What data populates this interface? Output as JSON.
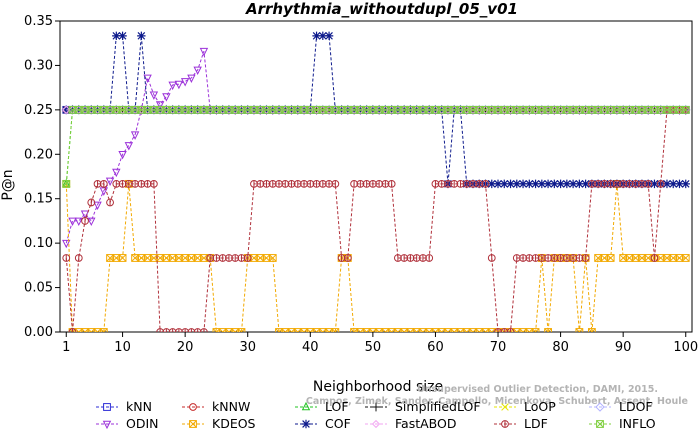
{
  "chart_data": {
    "type": "line",
    "title": "Arrhythmia_withoutdupl_05_v01",
    "xlabel": "Neighborhood size",
    "ylabel": "P@n",
    "xlim": [
      0,
      101
    ],
    "ylim": [
      0,
      0.35
    ],
    "xticks": [
      1,
      10,
      20,
      30,
      40,
      50,
      60,
      70,
      80,
      90,
      100
    ],
    "yticks": [
      "0.00",
      "0.05",
      "0.10",
      "0.15",
      "0.20",
      "0.25",
      "0.30",
      "0.35"
    ],
    "grid": false,
    "legend_position": "bottom",
    "watermark": [
      "Unsupervised Outlier Detection, DAMI, 2015.",
      "Campos, Zimek, Sander, Campello, Micenkova, Schubert, Assent, Houle"
    ],
    "series": [
      {
        "name": "kNN",
        "color": "#2b2bd6",
        "marker": "square",
        "segments": [
          {
            "x0": 1,
            "x1": 100,
            "value": 0.25
          }
        ]
      },
      {
        "name": "kNNW",
        "color": "#c62828",
        "marker": "circle",
        "segments": [
          {
            "x0": 1,
            "x1": 100,
            "value": 0.25
          }
        ]
      },
      {
        "name": "LOF",
        "color": "#22c322",
        "marker": "triangle",
        "segments": [
          {
            "x0": 1,
            "x1": 1,
            "value": 0.1667
          },
          {
            "x0": 2,
            "x1": 100,
            "value": 0.25
          }
        ]
      },
      {
        "name": "SimplifiedLOF",
        "color": "#111111",
        "marker": "plus",
        "segments": [
          {
            "x0": 1,
            "x1": 100,
            "value": 0.25
          }
        ]
      },
      {
        "name": "LoOP",
        "color": "#e6e600",
        "marker": "x",
        "segments": [
          {
            "x0": 1,
            "x1": 100,
            "value": 0.25
          }
        ]
      },
      {
        "name": "LDOF",
        "color": "#b3b3ff",
        "marker": "diamond",
        "segments": [
          {
            "x0": 1,
            "x1": 100,
            "value": 0.25
          }
        ]
      },
      {
        "name": "ODIN",
        "color": "#9b30d9",
        "marker": "triangle-down",
        "segments": [
          {
            "x0": 1,
            "x1": 1,
            "value": 0.1
          },
          {
            "x0": 2,
            "x1": 2,
            "value": 0.125
          },
          {
            "x0": 3,
            "x1": 3,
            "value": 0.125
          },
          {
            "x0": 4,
            "x1": 4,
            "value": 0.133
          },
          {
            "x0": 5,
            "x1": 5,
            "value": 0.125
          },
          {
            "x0": 6,
            "x1": 6,
            "value": 0.143
          },
          {
            "x0": 7,
            "x1": 7,
            "value": 0.159
          },
          {
            "x0": 8,
            "x1": 8,
            "value": 0.17
          },
          {
            "x0": 9,
            "x1": 9,
            "value": 0.18
          },
          {
            "x0": 10,
            "x1": 10,
            "value": 0.2
          },
          {
            "x0": 11,
            "x1": 11,
            "value": 0.21
          },
          {
            "x0": 12,
            "x1": 12,
            "value": 0.222
          },
          {
            "x0": 13,
            "x1": 13,
            "value": 0.25
          },
          {
            "x0": 14,
            "x1": 14,
            "value": 0.286
          },
          {
            "x0": 15,
            "x1": 15,
            "value": 0.267
          },
          {
            "x0": 16,
            "x1": 16,
            "value": 0.256
          },
          {
            "x0": 17,
            "x1": 17,
            "value": 0.265
          },
          {
            "x0": 18,
            "x1": 18,
            "value": 0.278
          },
          {
            "x0": 19,
            "x1": 19,
            "value": 0.279
          },
          {
            "x0": 20,
            "x1": 20,
            "value": 0.282
          },
          {
            "x0": 21,
            "x1": 21,
            "value": 0.286
          },
          {
            "x0": 22,
            "x1": 22,
            "value": 0.295
          },
          {
            "x0": 23,
            "x1": 23,
            "value": 0.316
          },
          {
            "x0": 24,
            "x1": 100,
            "value": 0.25
          }
        ]
      },
      {
        "name": "KDEOS",
        "color": "#f2a900",
        "marker": "square-x",
        "segments": [
          {
            "x0": 1,
            "x1": 1,
            "value": 0.1667
          },
          {
            "x0": 2,
            "x1": 7,
            "value": 0.0
          },
          {
            "x0": 8,
            "x1": 10,
            "value": 0.0833
          },
          {
            "x0": 11,
            "x1": 11,
            "value": 0.1667
          },
          {
            "x0": 12,
            "x1": 24,
            "value": 0.0833
          },
          {
            "x0": 25,
            "x1": 29,
            "value": 0.0
          },
          {
            "x0": 30,
            "x1": 34,
            "value": 0.0833
          },
          {
            "x0": 35,
            "x1": 44,
            "value": 0.0
          },
          {
            "x0": 45,
            "x1": 46,
            "value": 0.0833
          },
          {
            "x0": 47,
            "x1": 76,
            "value": 0.0
          },
          {
            "x0": 77,
            "x1": 77,
            "value": 0.0833
          },
          {
            "x0": 78,
            "x1": 78,
            "value": 0.0
          },
          {
            "x0": 79,
            "x1": 82,
            "value": 0.0833
          },
          {
            "x0": 83,
            "x1": 83,
            "value": 0.0
          },
          {
            "x0": 84,
            "x1": 84,
            "value": 0.0833
          },
          {
            "x0": 85,
            "x1": 85,
            "value": 0.0
          },
          {
            "x0": 86,
            "x1": 88,
            "value": 0.0833
          },
          {
            "x0": 89,
            "x1": 89,
            "value": 0.1667
          },
          {
            "x0": 90,
            "x1": 100,
            "value": 0.0833
          }
        ]
      },
      {
        "name": "COF",
        "color": "#0d1a8c",
        "marker": "asterisk",
        "segments": [
          {
            "x0": 1,
            "x1": 8,
            "value": 0.25
          },
          {
            "x0": 9,
            "x1": 10,
            "value": 0.3333
          },
          {
            "x0": 11,
            "x1": 12,
            "value": 0.25
          },
          {
            "x0": 13,
            "x1": 13,
            "value": 0.3333
          },
          {
            "x0": 14,
            "x1": 40,
            "value": 0.25
          },
          {
            "x0": 41,
            "x1": 43,
            "value": 0.3333
          },
          {
            "x0": 44,
            "x1": 61,
            "value": 0.25
          },
          {
            "x0": 62,
            "x1": 62,
            "value": 0.1667
          },
          {
            "x0": 63,
            "x1": 63,
            "value": 0.25
          },
          {
            "x0": 64,
            "x1": 64,
            "value": 0.25
          },
          {
            "x0": 65,
            "x1": 100,
            "value": 0.1667
          }
        ]
      },
      {
        "name": "FastABOD",
        "color": "#f2a6f2",
        "marker": "diamond-small",
        "segments": [
          {
            "x0": 1,
            "x1": 100,
            "value": 0.25
          }
        ]
      },
      {
        "name": "LDF",
        "color": "#b0303a",
        "marker": "circle-line",
        "segments": [
          {
            "x0": 1,
            "x1": 1,
            "value": 0.0833
          },
          {
            "x0": 2,
            "x1": 2,
            "value": 0.0
          },
          {
            "x0": 3,
            "x1": 3,
            "value": 0.0833
          },
          {
            "x0": 4,
            "x1": 4,
            "value": 0.125
          },
          {
            "x0": 5,
            "x1": 5,
            "value": 0.1458
          },
          {
            "x0": 6,
            "x1": 7,
            "value": 0.1667
          },
          {
            "x0": 8,
            "x1": 8,
            "value": 0.1458
          },
          {
            "x0": 9,
            "x1": 9,
            "value": 0.1667
          },
          {
            "x0": 10,
            "x1": 10,
            "value": 0.1667
          },
          {
            "x0": 11,
            "x1": 15,
            "value": 0.1667
          },
          {
            "x0": 16,
            "x1": 23,
            "value": 0.0
          },
          {
            "x0": 24,
            "x1": 30,
            "value": 0.0833
          },
          {
            "x0": 31,
            "x1": 44,
            "value": 0.1667
          },
          {
            "x0": 45,
            "x1": 45,
            "value": 0.0833
          },
          {
            "x0": 46,
            "x1": 46,
            "value": 0.0833
          },
          {
            "x0": 47,
            "x1": 52,
            "value": 0.1667
          },
          {
            "x0": 53,
            "x1": 53,
            "value": 0.1667
          },
          {
            "x0": 54,
            "x1": 58,
            "value": 0.0833
          },
          {
            "x0": 59,
            "x1": 59,
            "value": 0.0833
          },
          {
            "x0": 60,
            "x1": 62,
            "value": 0.1667
          },
          {
            "x0": 63,
            "x1": 63,
            "value": 0.1667
          },
          {
            "x0": 64,
            "x1": 68,
            "value": 0.1667
          },
          {
            "x0": 69,
            "x1": 69,
            "value": 0.0833
          },
          {
            "x0": 70,
            "x1": 70,
            "value": 0.0
          },
          {
            "x0": 71,
            "x1": 71,
            "value": 0.0
          },
          {
            "x0": 72,
            "x1": 72,
            "value": 0.0
          },
          {
            "x0": 73,
            "x1": 76,
            "value": 0.0833
          },
          {
            "x0": 77,
            "x1": 84,
            "value": 0.0833
          },
          {
            "x0": 85,
            "x1": 94,
            "value": 0.1667
          },
          {
            "x0": 95,
            "x1": 95,
            "value": 0.0833
          },
          {
            "x0": 96,
            "x1": 96,
            "value": 0.1667
          },
          {
            "x0": 97,
            "x1": 100,
            "value": 0.25
          }
        ]
      },
      {
        "name": "INFLO",
        "color": "#7fcf3f",
        "marker": "square-x",
        "segments": [
          {
            "x0": 1,
            "x1": 1,
            "value": 0.1667
          },
          {
            "x0": 2,
            "x1": 100,
            "value": 0.25
          }
        ]
      }
    ],
    "legend_order": [
      [
        "kNN",
        "kNNW",
        "LOF",
        "SimplifiedLOF",
        "LoOP",
        "LDOF"
      ],
      [
        "ODIN",
        "KDEOS",
        "COF",
        "FastABOD",
        "LDF",
        "INFLO"
      ]
    ]
  }
}
